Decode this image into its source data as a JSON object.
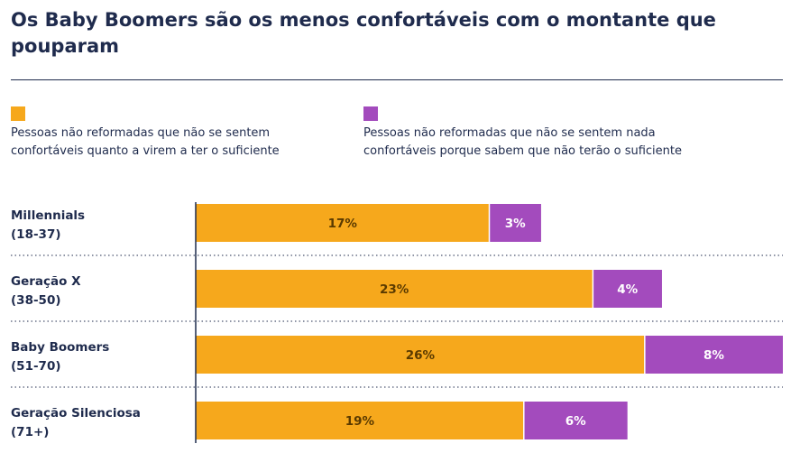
{
  "header": {
    "title": "Os Baby Boomers são os menos confortáveis com o montante que pouparam"
  },
  "colors": {
    "series1": "#F6A81C",
    "series2": "#A34BBD",
    "series1_label": "#5a3a00",
    "series2_label": "#ffffff",
    "text": "#1f2b4d"
  },
  "chart_data": {
    "type": "bar",
    "orientation": "horizontal",
    "stacked": true,
    "categories": [
      [
        "Millennials",
        "(18-37)"
      ],
      [
        "Geração X",
        "(38-50)"
      ],
      [
        "Baby Boomers",
        "(51-70)"
      ],
      [
        "Geração Silenciosa",
        "(71+)"
      ]
    ],
    "series": [
      {
        "name": "Pessoas não reformadas que não se sentem confortáveis quanto a virem a ter o suficiente",
        "values": [
          17,
          23,
          26,
          19
        ],
        "labels": [
          "17%",
          "23%",
          "26%",
          "19%"
        ]
      },
      {
        "name": "Pessoas não reformadas que não se sentem nada confortáveis porque sabem que não terão o suficiente",
        "values": [
          3,
          4,
          8,
          6
        ],
        "labels": [
          "3%",
          "4%",
          "8%",
          "6%"
        ]
      }
    ],
    "legend": {
      "placement": "top",
      "items": [
        [
          "Pessoas não reformadas que não se sentem",
          "confortáveis quanto a virem a ter o suficiente"
        ],
        [
          "Pessoas não reformadas que não se sentem nada",
          "confortáveis porque sabem que não terão o suficiente"
        ]
      ]
    },
    "xlim": [
      0,
      34
    ],
    "grid": false
  }
}
